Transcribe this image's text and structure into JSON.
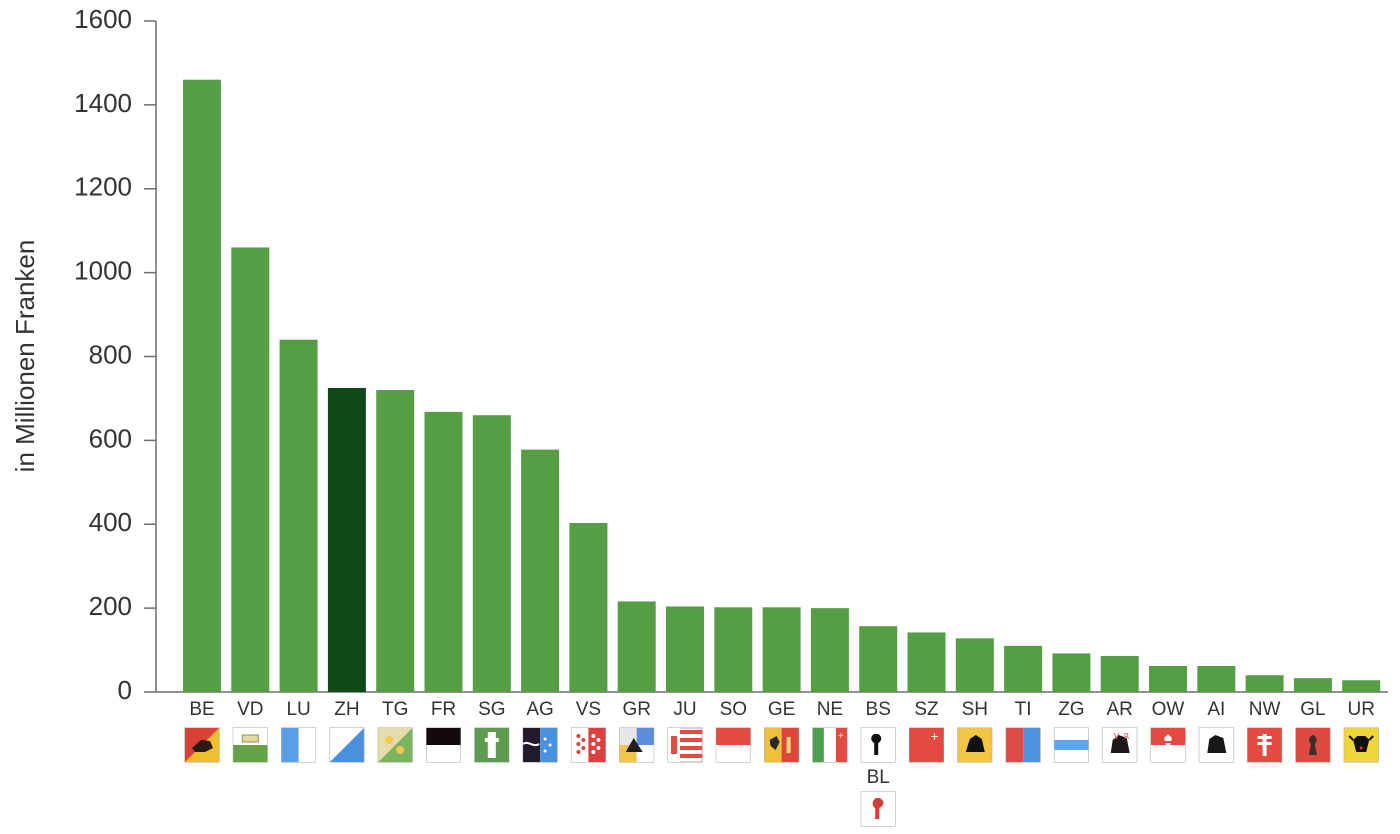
{
  "chart_data": {
    "type": "bar",
    "ylabel": "in Millionen Franken",
    "ylim": [
      0,
      1600
    ],
    "yticks": [
      0,
      200,
      400,
      600,
      800,
      1000,
      1200,
      1400,
      1600
    ],
    "categories": [
      "BE",
      "VD",
      "LU",
      "ZH",
      "TG",
      "FR",
      "SG",
      "AG",
      "VS",
      "GR",
      "JU",
      "SO",
      "GE",
      "NE",
      "BS",
      "SZ",
      "SH",
      "TI",
      "ZG",
      "AR",
      "OW",
      "AI",
      "NW",
      "GL",
      "UR"
    ],
    "values": [
      1460,
      1060,
      840,
      725,
      720,
      668,
      660,
      578,
      403,
      216,
      204,
      202,
      202,
      200,
      157,
      142,
      128,
      110,
      92,
      86,
      62,
      62,
      40,
      33,
      28
    ],
    "extra_category_label": "BL",
    "extra_category_under": "BS",
    "highlight_category": "ZH",
    "bar_color": "#569e44",
    "highlight_color": "#0d4a18",
    "grid": false
  },
  "flags": {
    "BE": "bear-flag-icon",
    "VD": "vaud-flag-icon",
    "LU": "lucerne-flag-icon",
    "ZH": "zurich-flag-icon",
    "TG": "thurgau-flag-icon",
    "FR": "fribourg-flag-icon",
    "SG": "st-gallen-flag-icon",
    "AG": "aargau-flag-icon",
    "VS": "valais-flag-icon",
    "GR": "graubuenden-flag-icon",
    "JU": "jura-flag-icon",
    "SO": "solothurn-flag-icon",
    "GE": "geneva-flag-icon",
    "NE": "neuchatel-flag-icon",
    "BS": "basel-stadt-flag-icon",
    "SZ": "schwyz-flag-icon",
    "SH": "schaffhausen-flag-icon",
    "TI": "ticino-flag-icon",
    "ZG": "zug-flag-icon",
    "AR": "appenzell-ausserrhoden-flag-icon",
    "OW": "obwalden-flag-icon",
    "AI": "appenzell-innerrhoden-flag-icon",
    "NW": "nidwalden-flag-icon",
    "GL": "glarus-flag-icon",
    "UR": "uri-flag-icon",
    "BL": "basel-landschaft-flag-icon"
  }
}
